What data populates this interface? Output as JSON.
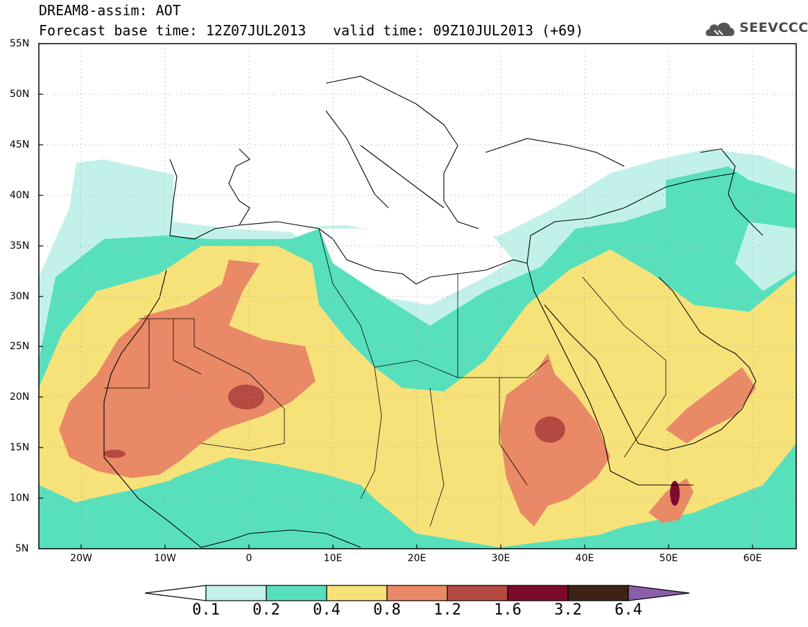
{
  "title": "DREAM8-assim: AOT",
  "forecast_base": "Forecast base time: 12Z07JUL2013",
  "valid_time": "valid time: 09Z10JUL2013 (+69)",
  "logo_text": "SEEVCCC",
  "lat_labels": [
    "55N",
    "50N",
    "45N",
    "40N",
    "35N",
    "30N",
    "25N",
    "20N",
    "15N",
    "10N",
    "5N"
  ],
  "lon_labels": [
    "20W",
    "10W",
    "0",
    "10E",
    "20E",
    "30E",
    "40E",
    "50E",
    "60E"
  ],
  "colorbar": {
    "labels": [
      "0.1",
      "0.2",
      "0.4",
      "0.8",
      "1.2",
      "1.6",
      "3.2",
      "6.4"
    ],
    "colors": [
      "#ffffff",
      "#c2f1ea",
      "#58e0bd",
      "#f7e27a",
      "#e98966",
      "#b54a42",
      "#7c0b2e",
      "#3e2417",
      "#8b5fa7"
    ]
  },
  "map_extent": {
    "lon": [
      -25,
      65
    ],
    "lat": [
      5,
      55
    ]
  },
  "colors": {
    "c01": "#c2f1ea",
    "c02": "#58e0bd",
    "c04": "#f7e27a",
    "c08": "#e98966",
    "c12": "#b54a42",
    "c16": "#7c0b2e"
  }
}
